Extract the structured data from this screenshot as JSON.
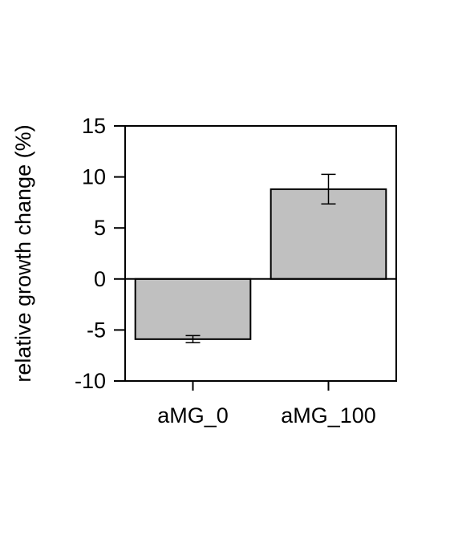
{
  "chart_data": {
    "type": "bar",
    "title": "",
    "xlabel": "",
    "ylabel": "relative growth change (%)",
    "categories": [
      "aMG_0",
      "aMG_100"
    ],
    "values": [
      -5.9,
      8.8
    ],
    "errors": [
      0.35,
      1.45
    ],
    "ylim": [
      -10,
      15
    ],
    "yticks": [
      -10,
      -5,
      0,
      5,
      10,
      15
    ],
    "ytick_labels": [
      "-10",
      "-5",
      "0",
      "5",
      "10",
      "15"
    ],
    "bar_color": "#c0c0c0",
    "edge_color": "#000000",
    "grid": false,
    "legend": "none"
  }
}
